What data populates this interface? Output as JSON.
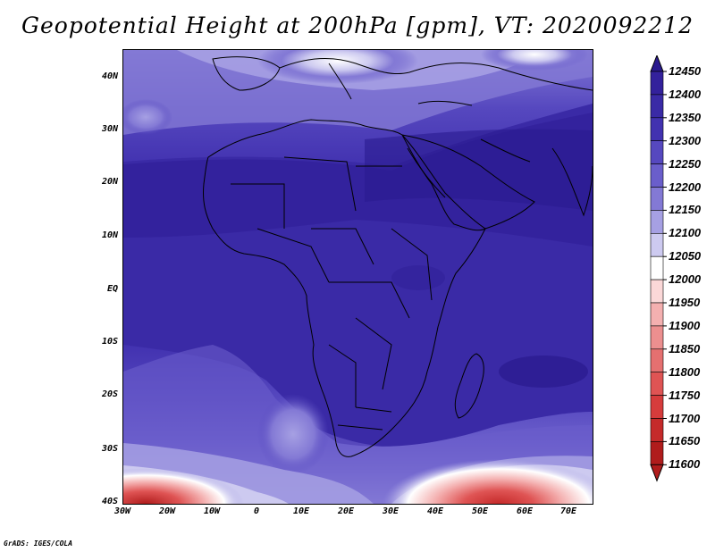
{
  "title": "Geopotential Height at 200hPa [gpm], VT: 2020092212",
  "credit": "GrADS: IGES/COLA",
  "map": {
    "lat_labels": [
      "40N",
      "30N",
      "20N",
      "10N",
      "EQ",
      "10S",
      "20S",
      "30S",
      "40S"
    ],
    "lon_labels": [
      "30W",
      "20W",
      "10W",
      "0",
      "10E",
      "20E",
      "30E",
      "40E",
      "50E",
      "60E",
      "70E"
    ]
  },
  "colorbar": {
    "levels": [
      "12450",
      "12400",
      "12350",
      "12300",
      "12250",
      "12200",
      "12150",
      "12100",
      "12050",
      "12000",
      "11950",
      "11900",
      "11850",
      "11800",
      "11750",
      "11700",
      "11650",
      "11600"
    ],
    "colors": [
      "#2a1a8f",
      "#33219c",
      "#3a2aa6",
      "#4232b0",
      "#5648bf",
      "#6a5ecb",
      "#8379d5",
      "#a6a0e3",
      "#cdcaf0",
      "#ffffff",
      "#fbd8d8",
      "#f4b0b0",
      "#ec8f8f",
      "#e57070",
      "#df5454",
      "#d63c3c",
      "#c52a2a",
      "#b01c1c"
    ]
  },
  "chart_data": {
    "type": "heatmap",
    "title": "Geopotential Height at 200hPa [gpm], VT: 2020092212",
    "variable": "Geopotential Height",
    "units": "gpm",
    "level": "200hPa",
    "valid_time": "2020092212",
    "xlim": [
      -30,
      75
    ],
    "ylim": [
      -40,
      45
    ],
    "x_ticks": [
      "30W",
      "20W",
      "10W",
      "0",
      "10E",
      "20E",
      "30E",
      "40E",
      "50E",
      "60E",
      "70E"
    ],
    "y_ticks": [
      "40S",
      "30S",
      "20S",
      "10S",
      "EQ",
      "10N",
      "20N",
      "30N",
      "40N"
    ],
    "contour_levels": [
      11600,
      11650,
      11700,
      11750,
      11800,
      11850,
      11900,
      11950,
      12000,
      12050,
      12100,
      12150,
      12200,
      12250,
      12300,
      12350,
      12400,
      12450
    ]
  }
}
